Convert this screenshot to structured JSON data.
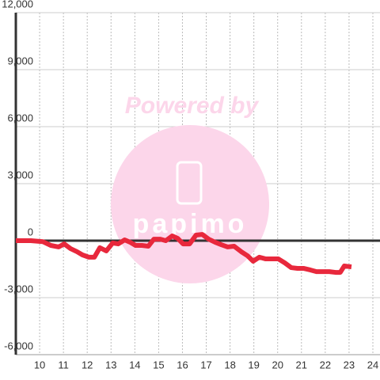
{
  "chart_data": {
    "type": "line",
    "watermark": "Powered by",
    "watermark_logo": "papimo",
    "x": [
      9.0,
      9.63,
      10.13,
      10.47,
      10.8,
      11.03,
      11.3,
      11.57,
      11.8,
      12.07,
      12.3,
      12.53,
      12.8,
      13.07,
      13.3,
      13.57,
      13.8,
      14.03,
      14.3,
      14.57,
      14.8,
      15.07,
      15.3,
      15.57,
      15.8,
      16.03,
      16.3,
      16.57,
      16.83,
      17.1,
      17.37,
      17.63,
      17.9,
      18.17,
      18.47,
      18.73,
      18.97,
      19.23,
      19.5,
      19.77,
      20.03,
      20.3,
      20.57,
      20.83,
      21.1,
      21.37,
      21.63,
      21.9,
      22.17,
      22.43,
      22.63,
      22.8,
      23.1
    ],
    "series": [
      {
        "color": "#e8283c",
        "values": [
          0,
          0,
          -50,
          -250,
          -330,
          -170,
          -420,
          -580,
          -750,
          -870,
          -870,
          -370,
          -540,
          -120,
          -170,
          40,
          -80,
          -250,
          -250,
          -290,
          80,
          80,
          0,
          250,
          120,
          -170,
          -170,
          290,
          330,
          80,
          -80,
          -210,
          -330,
          -290,
          -580,
          -790,
          -1080,
          -870,
          -960,
          -960,
          -960,
          -1170,
          -1420,
          -1460,
          -1460,
          -1540,
          -1630,
          -1630,
          -1630,
          -1670,
          -1670,
          -1330,
          -1380
        ]
      }
    ],
    "xlim": [
      9,
      24.3
    ],
    "xticks": [
      10,
      11,
      12,
      13,
      14,
      15,
      16,
      17,
      18,
      19,
      20,
      21,
      22,
      23,
      24
    ],
    "ylim": [
      -6000,
      12000
    ],
    "yticks": [
      {
        "value": -6000,
        "label": "-6,000"
      },
      {
        "value": -3000,
        "label": "-3,000"
      },
      0,
      {
        "value": 3000,
        "label": "3,000"
      },
      {
        "value": 6000,
        "label": "6,000"
      },
      {
        "value": 9000,
        "label": "9,000"
      },
      {
        "value": 12000,
        "label": "12,000"
      }
    ],
    "grid": true
  }
}
